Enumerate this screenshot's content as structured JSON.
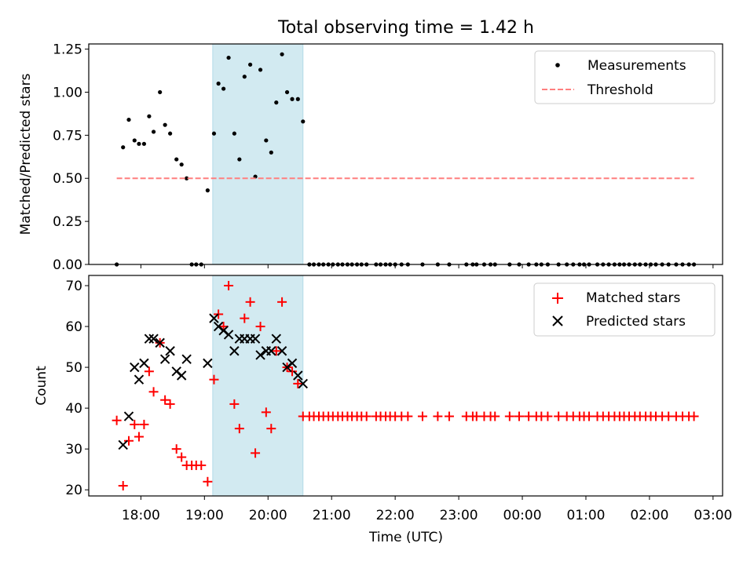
{
  "chart_data": {
    "type": "scatter",
    "title": "Total observing time = 1.42 h",
    "xlabel": "Time (UTC)",
    "x_tick_labels": [
      "18:00",
      "19:00",
      "20:00",
      "21:00",
      "22:00",
      "23:00",
      "00:00",
      "01:00",
      "02:00",
      "03:00"
    ],
    "x_tick_hours": [
      0,
      1,
      2,
      3,
      4,
      5,
      6,
      7,
      8,
      9
    ],
    "x_unit": "hours relative to 18:00 UTC",
    "xlim": [
      -0.82,
      9.15
    ],
    "shaded_interval": {
      "start": 1.13,
      "end": 2.55,
      "color": "#add8e6"
    },
    "panels": [
      {
        "ylabel": "Matched/Predicted stars",
        "ylim": [
          0,
          1.28
        ],
        "y_ticks": [
          0.0,
          0.25,
          0.5,
          0.75,
          1.0,
          1.25
        ],
        "y_tick_labels": [
          "0.00",
          "0.25",
          "0.50",
          "0.75",
          "1.00",
          "1.25"
        ],
        "legend_position": "upper right",
        "series": [
          {
            "name": "Measurements",
            "marker": "dot",
            "color": "#000000",
            "points": [
              [
                -0.38,
                0.0
              ],
              [
                -0.28,
                0.68
              ],
              [
                -0.19,
                0.84
              ],
              [
                -0.1,
                0.72
              ],
              [
                -0.03,
                0.7
              ],
              [
                0.05,
                0.7
              ],
              [
                0.13,
                0.86
              ],
              [
                0.2,
                0.77
              ],
              [
                0.3,
                1.0
              ],
              [
                0.38,
                0.81
              ],
              [
                0.46,
                0.76
              ],
              [
                0.56,
                0.61
              ],
              [
                0.64,
                0.58
              ],
              [
                0.72,
                0.5
              ],
              [
                0.8,
                0.0
              ],
              [
                0.87,
                0.0
              ],
              [
                0.95,
                0.0
              ],
              [
                1.05,
                0.43
              ],
              [
                1.15,
                0.76
              ],
              [
                1.22,
                1.05
              ],
              [
                1.3,
                1.02
              ],
              [
                1.38,
                1.2
              ],
              [
                1.47,
                0.76
              ],
              [
                1.55,
                0.61
              ],
              [
                1.63,
                1.09
              ],
              [
                1.72,
                1.16
              ],
              [
                1.8,
                0.51
              ],
              [
                1.88,
                1.13
              ],
              [
                1.97,
                0.72
              ],
              [
                2.05,
                0.65
              ],
              [
                2.13,
                0.94
              ],
              [
                2.22,
                1.22
              ],
              [
                2.3,
                1.0
              ],
              [
                2.38,
                0.96
              ],
              [
                2.47,
                0.96
              ],
              [
                2.55,
                0.83
              ],
              [
                2.65,
                0.0
              ],
              [
                2.72,
                0.0
              ],
              [
                2.8,
                0.0
              ],
              [
                2.87,
                0.0
              ],
              [
                2.95,
                0.0
              ],
              [
                3.02,
                0.0
              ],
              [
                3.1,
                0.0
              ],
              [
                3.17,
                0.0
              ],
              [
                3.25,
                0.0
              ],
              [
                3.32,
                0.0
              ],
              [
                3.4,
                0.0
              ],
              [
                3.47,
                0.0
              ],
              [
                3.55,
                0.0
              ],
              [
                3.7,
                0.0
              ],
              [
                3.77,
                0.0
              ],
              [
                3.85,
                0.0
              ],
              [
                3.92,
                0.0
              ],
              [
                4.0,
                0.0
              ],
              [
                4.1,
                0.0
              ],
              [
                4.2,
                0.0
              ],
              [
                4.43,
                0.0
              ],
              [
                4.67,
                0.0
              ],
              [
                4.85,
                0.0
              ],
              [
                5.12,
                0.0
              ],
              [
                5.22,
                0.0
              ],
              [
                5.28,
                0.0
              ],
              [
                5.4,
                0.0
              ],
              [
                5.5,
                0.0
              ],
              [
                5.57,
                0.0
              ],
              [
                5.8,
                0.0
              ],
              [
                5.95,
                0.0
              ],
              [
                6.1,
                0.0
              ],
              [
                6.22,
                0.0
              ],
              [
                6.3,
                0.0
              ],
              [
                6.4,
                0.0
              ],
              [
                6.57,
                0.0
              ],
              [
                6.7,
                0.0
              ],
              [
                6.8,
                0.0
              ],
              [
                6.9,
                0.0
              ],
              [
                6.97,
                0.0
              ],
              [
                7.05,
                0.0
              ],
              [
                7.18,
                0.0
              ],
              [
                7.27,
                0.0
              ],
              [
                7.36,
                0.0
              ],
              [
                7.45,
                0.0
              ],
              [
                7.53,
                0.0
              ],
              [
                7.6,
                0.0
              ],
              [
                7.68,
                0.0
              ],
              [
                7.77,
                0.0
              ],
              [
                7.85,
                0.0
              ],
              [
                7.94,
                0.0
              ],
              [
                8.02,
                0.0
              ],
              [
                8.1,
                0.0
              ],
              [
                8.2,
                0.0
              ],
              [
                8.3,
                0.0
              ],
              [
                8.42,
                0.0
              ],
              [
                8.52,
                0.0
              ],
              [
                8.62,
                0.0
              ],
              [
                8.7,
                0.0
              ]
            ]
          },
          {
            "name": "Threshold",
            "marker": "dashed-line",
            "color": "#ff7f7f",
            "points": [
              [
                -0.38,
                0.5
              ],
              [
                8.7,
                0.5
              ]
            ]
          }
        ]
      },
      {
        "ylabel": "Count",
        "ylim": [
          18.5,
          72.5
        ],
        "y_ticks": [
          20,
          30,
          40,
          50,
          60,
          70
        ],
        "y_tick_labels": [
          "20",
          "30",
          "40",
          "50",
          "60",
          "70"
        ],
        "legend_position": "upper right",
        "series": [
          {
            "name": "Matched stars",
            "marker": "plus",
            "color": "#ff0000",
            "points": [
              [
                -0.38,
                37
              ],
              [
                -0.28,
                21
              ],
              [
                -0.19,
                32
              ],
              [
                -0.1,
                36
              ],
              [
                -0.03,
                33
              ],
              [
                0.05,
                36
              ],
              [
                0.13,
                49
              ],
              [
                0.2,
                44
              ],
              [
                0.3,
                56
              ],
              [
                0.38,
                42
              ],
              [
                0.46,
                41
              ],
              [
                0.56,
                30
              ],
              [
                0.64,
                28
              ],
              [
                0.72,
                26
              ],
              [
                0.8,
                26
              ],
              [
                0.87,
                26
              ],
              [
                0.95,
                26
              ],
              [
                1.05,
                22
              ],
              [
                1.15,
                47
              ],
              [
                1.22,
                63
              ],
              [
                1.3,
                60
              ],
              [
                1.38,
                70
              ],
              [
                1.47,
                41
              ],
              [
                1.55,
                35
              ],
              [
                1.63,
                62
              ],
              [
                1.72,
                66
              ],
              [
                1.8,
                29
              ],
              [
                1.88,
                60
              ],
              [
                1.97,
                39
              ],
              [
                2.05,
                35
              ],
              [
                2.13,
                54
              ],
              [
                2.22,
                66
              ],
              [
                2.3,
                50
              ],
              [
                2.38,
                49
              ],
              [
                2.47,
                46
              ],
              [
                2.55,
                38
              ],
              [
                2.65,
                38
              ],
              [
                2.72,
                38
              ],
              [
                2.8,
                38
              ],
              [
                2.87,
                38
              ],
              [
                2.95,
                38
              ],
              [
                3.02,
                38
              ],
              [
                3.1,
                38
              ],
              [
                3.17,
                38
              ],
              [
                3.25,
                38
              ],
              [
                3.32,
                38
              ],
              [
                3.4,
                38
              ],
              [
                3.47,
                38
              ],
              [
                3.55,
                38
              ],
              [
                3.7,
                38
              ],
              [
                3.77,
                38
              ],
              [
                3.85,
                38
              ],
              [
                3.92,
                38
              ],
              [
                4.0,
                38
              ],
              [
                4.1,
                38
              ],
              [
                4.2,
                38
              ],
              [
                4.43,
                38
              ],
              [
                4.67,
                38
              ],
              [
                4.85,
                38
              ],
              [
                5.12,
                38
              ],
              [
                5.22,
                38
              ],
              [
                5.28,
                38
              ],
              [
                5.4,
                38
              ],
              [
                5.5,
                38
              ],
              [
                5.57,
                38
              ],
              [
                5.8,
                38
              ],
              [
                5.95,
                38
              ],
              [
                6.1,
                38
              ],
              [
                6.22,
                38
              ],
              [
                6.3,
                38
              ],
              [
                6.4,
                38
              ],
              [
                6.57,
                38
              ],
              [
                6.7,
                38
              ],
              [
                6.8,
                38
              ],
              [
                6.9,
                38
              ],
              [
                6.97,
                38
              ],
              [
                7.05,
                38
              ],
              [
                7.18,
                38
              ],
              [
                7.27,
                38
              ],
              [
                7.36,
                38
              ],
              [
                7.45,
                38
              ],
              [
                7.53,
                38
              ],
              [
                7.6,
                38
              ],
              [
                7.68,
                38
              ],
              [
                7.77,
                38
              ],
              [
                7.85,
                38
              ],
              [
                7.94,
                38
              ],
              [
                8.02,
                38
              ],
              [
                8.1,
                38
              ],
              [
                8.2,
                38
              ],
              [
                8.3,
                38
              ],
              [
                8.42,
                38
              ],
              [
                8.52,
                38
              ],
              [
                8.62,
                38
              ],
              [
                8.7,
                38
              ]
            ]
          },
          {
            "name": "Predicted stars",
            "marker": "x",
            "color": "#000000",
            "points": [
              [
                -0.28,
                31
              ],
              [
                -0.19,
                38
              ],
              [
                -0.1,
                50
              ],
              [
                -0.03,
                47
              ],
              [
                0.05,
                51
              ],
              [
                0.13,
                57
              ],
              [
                0.2,
                57
              ],
              [
                0.3,
                56
              ],
              [
                0.38,
                52
              ],
              [
                0.46,
                54
              ],
              [
                0.56,
                49
              ],
              [
                0.64,
                48
              ],
              [
                0.72,
                52
              ],
              [
                1.05,
                51
              ],
              [
                1.15,
                62
              ],
              [
                1.22,
                60
              ],
              [
                1.3,
                59
              ],
              [
                1.38,
                58
              ],
              [
                1.47,
                54
              ],
              [
                1.55,
                57
              ],
              [
                1.63,
                57
              ],
              [
                1.72,
                57
              ],
              [
                1.8,
                57
              ],
              [
                1.88,
                53
              ],
              [
                1.97,
                54
              ],
              [
                2.05,
                54
              ],
              [
                2.13,
                57
              ],
              [
                2.22,
                54
              ],
              [
                2.3,
                50
              ],
              [
                2.38,
                51
              ],
              [
                2.47,
                48
              ],
              [
                2.55,
                46
              ]
            ]
          }
        ]
      }
    ]
  }
}
